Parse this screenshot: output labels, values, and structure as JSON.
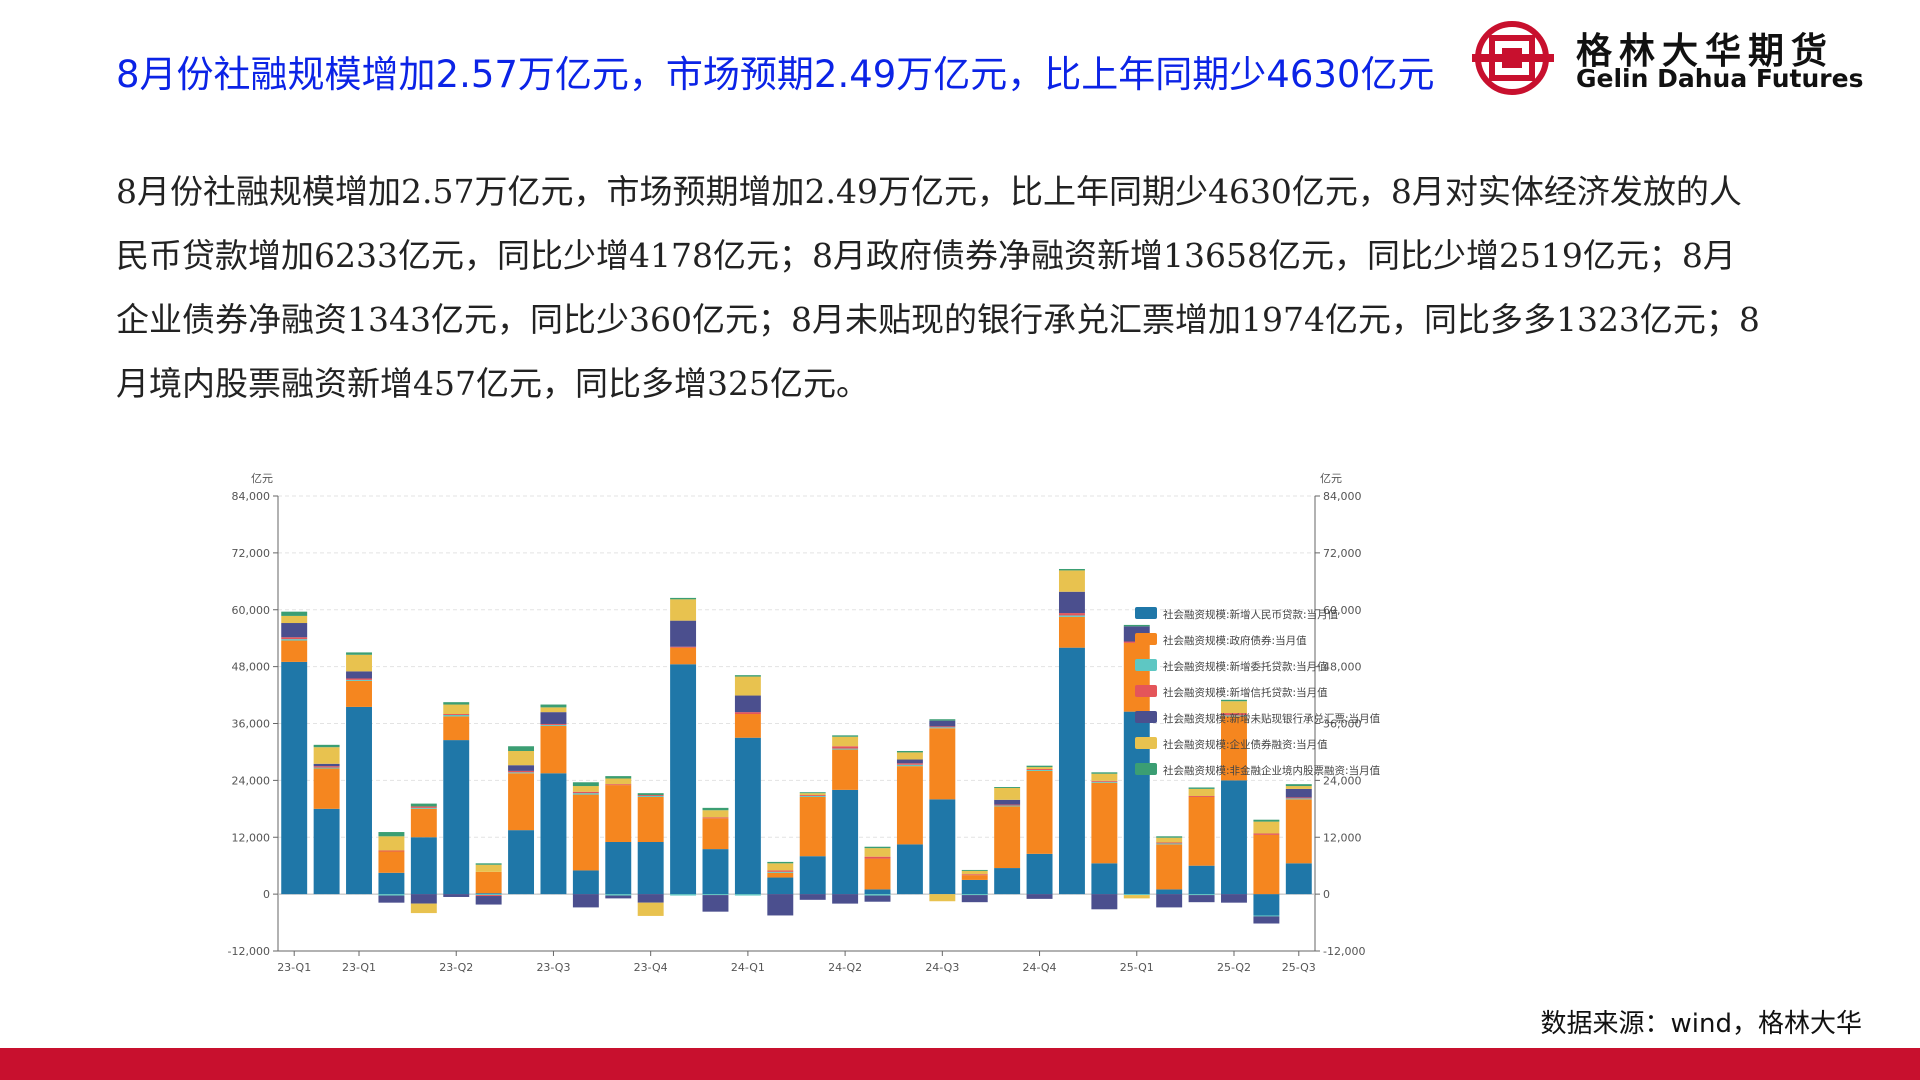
{
  "title": "8月份社融规模增加2.57万亿元，市场预期2.49万亿元，比上年同期少4630亿元",
  "logo": {
    "name_cn": "格林大华期货",
    "name_en": "Gelin Dahua Futures",
    "brand_color": "#c8102e"
  },
  "paragraph": "8月份社融规模增加2.57万亿元，市场预期增加2.49万亿元，比上年同期少4630亿元，8月对实体经济发放的人民币贷款增加6233亿元，同比少增4178亿元；8月政府债券净融资新增13658亿元，同比少增2519亿元；8月企业债券净融资1343亿元，同比少360亿元；8月未贴现的银行承兑汇票增加1974亿元，同比多多1323亿元；8月境内股票融资新增457亿元，同比多增325亿元。",
  "source": "数据来源：wind，格林大华",
  "chart_data": {
    "type": "bar",
    "stacked": true,
    "y_unit_left": "亿元",
    "y_unit_right": "亿元",
    "ylim": [
      -12000,
      84000
    ],
    "yticks": [
      "84,000",
      "72,000",
      "60,000",
      "48,000",
      "36,000",
      "24,000",
      "12,000",
      "0",
      "-12,000"
    ],
    "ytick_values": [
      84000,
      72000,
      60000,
      48000,
      36000,
      24000,
      12000,
      0,
      -12000
    ],
    "grid": true,
    "legend_position": "right",
    "xtick_labels": [
      "23-Q1",
      "23-Q1",
      "23-Q2",
      "23-Q3",
      "23-Q4",
      "24-Q1",
      "24-Q2",
      "24-Q3",
      "24-Q4",
      "25-Q1",
      "25-Q2",
      "25-Q3"
    ],
    "xtick_bar_index": [
      0,
      2,
      5,
      8,
      11,
      14,
      17,
      20,
      23,
      26,
      29,
      31
    ],
    "series": [
      {
        "name": "社会融资规模:新增人民币贷款:当月值",
        "color": "#1f77a8",
        "values": [
          49000,
          18000,
          39500,
          4500,
          12000,
          32500,
          200,
          13500,
          25500,
          5000,
          11000,
          11000,
          48500,
          9500,
          33000,
          3500,
          8000,
          22000,
          1000,
          10500,
          20000,
          3000,
          5500,
          8500,
          52000,
          6500,
          38500,
          1000,
          6000,
          24000,
          -4500,
          6500
        ]
      },
      {
        "name": "社会融资规模:政府债券:当月值",
        "color": "#f5861f",
        "values": [
          4500,
          8500,
          5500,
          4500,
          6000,
          5000,
          4500,
          12000,
          10000,
          16000,
          12000,
          9500,
          3500,
          6500,
          5000,
          1000,
          12500,
          8500,
          6500,
          16500,
          15000,
          1000,
          13000,
          17500,
          6500,
          17000,
          14500,
          9500,
          14500,
          13500,
          12500,
          13500
        ]
      },
      {
        "name": "社会融资规模:新增委托贷款:当月值",
        "color": "#5ec7c3",
        "values": [
          300,
          200,
          200,
          -300,
          200,
          300,
          -200,
          200,
          200,
          300,
          -300,
          200,
          -300,
          -200,
          -300,
          200,
          200,
          200,
          -300,
          300,
          200,
          -200,
          200,
          200,
          300,
          200,
          -200,
          200,
          -200,
          200,
          -200,
          200
        ]
      },
      {
        "name": "社会融资规模:新增信托贷款:当月值",
        "color": "#e4555a",
        "values": [
          400,
          300,
          300,
          200,
          300,
          200,
          -200,
          300,
          200,
          300,
          200,
          200,
          200,
          200,
          400,
          300,
          200,
          500,
          400,
          300,
          200,
          200,
          200,
          200,
          500,
          200,
          300,
          200,
          200,
          500,
          300,
          200
        ]
      },
      {
        "name": "社会融资规模:新增未贴现银行承兑汇票:当月值",
        "color": "#4b4f8e",
        "values": [
          3000,
          500,
          1500,
          -1500,
          -2000,
          -600,
          -1800,
          1200,
          2500,
          -2800,
          -600,
          -1800,
          5500,
          -3500,
          3500,
          -4500,
          -1200,
          -2000,
          -1300,
          800,
          1200,
          -1500,
          1000,
          -1000,
          4500,
          -3200,
          3200,
          -2800,
          -1500,
          -1800,
          -1500,
          1800
        ]
      },
      {
        "name": "社会融资规模:企业债券融资:当月值",
        "color": "#e8c24f",
        "values": [
          1500,
          3500,
          3500,
          3000,
          -2000,
          2000,
          1500,
          3000,
          1000,
          1200,
          1200,
          -2800,
          4500,
          1500,
          4000,
          1500,
          400,
          2000,
          1800,
          1500,
          -1500,
          700,
          2500,
          400,
          4500,
          1500,
          -700,
          1000,
          1500,
          2500,
          2500,
          600
        ]
      },
      {
        "name": "社会融资规模:非金融企业境内股票融资:当月值",
        "color": "#3b9e73",
        "values": [
          900,
          500,
          500,
          900,
          600,
          500,
          300,
          1000,
          600,
          800,
          500,
          400,
          300,
          500,
          300,
          300,
          200,
          300,
          300,
          300,
          300,
          200,
          200,
          300,
          300,
          300,
          300,
          300,
          300,
          300,
          400,
          400
        ]
      }
    ]
  }
}
